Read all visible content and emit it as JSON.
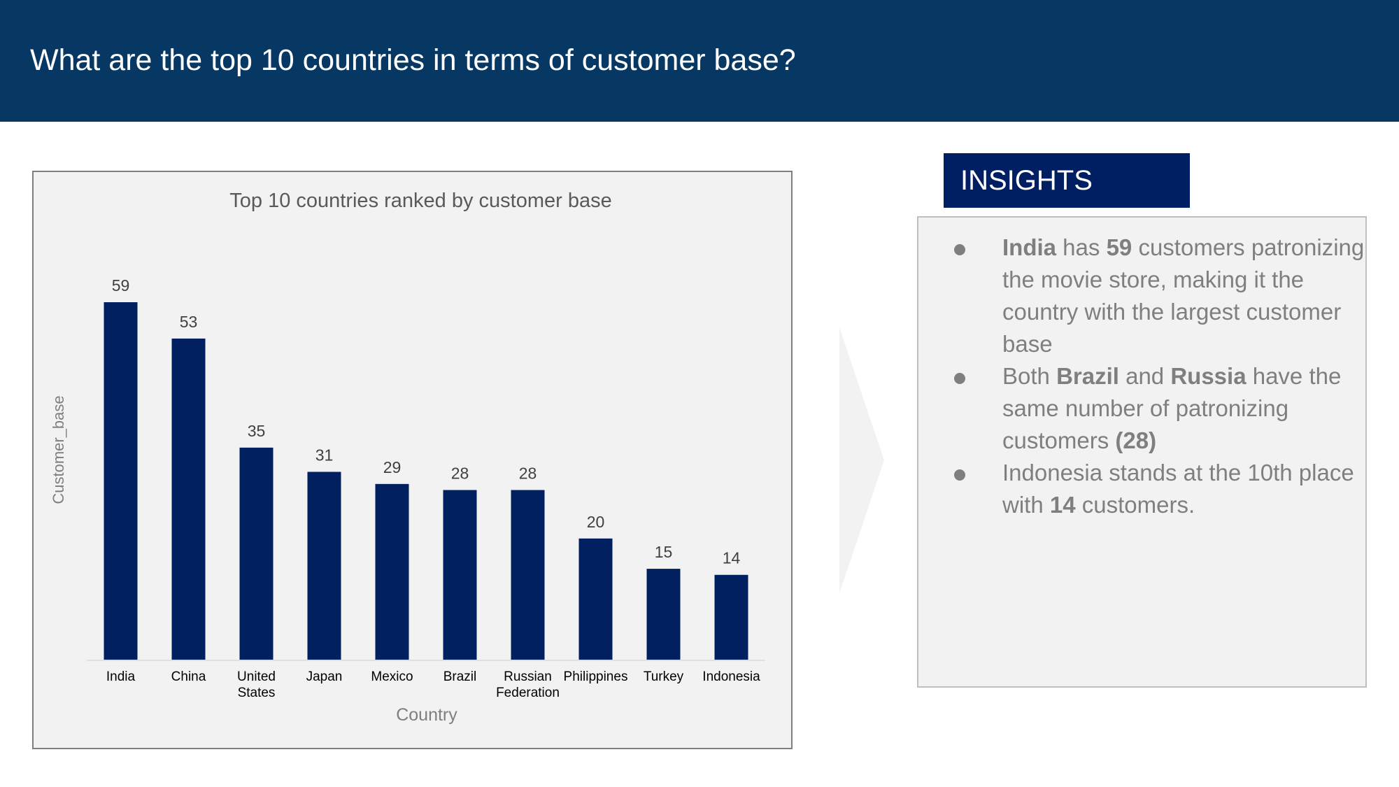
{
  "header": {
    "title": "What are the top 10 countries in terms of customer base?"
  },
  "chart_data": {
    "type": "bar",
    "title": "Top 10 countries ranked by customer base",
    "xlabel": "Country",
    "ylabel": "Customer_base",
    "categories": [
      [
        "India"
      ],
      [
        "China"
      ],
      [
        "United",
        "States"
      ],
      [
        "Japan"
      ],
      [
        "Mexico"
      ],
      [
        "Brazil"
      ],
      [
        "Russian",
        "Federation"
      ],
      [
        "Philippines"
      ],
      [
        "Turkey"
      ],
      [
        "Indonesia"
      ]
    ],
    "values": [
      59,
      53,
      35,
      31,
      29,
      28,
      28,
      20,
      15,
      14
    ],
    "ylim": [
      0,
      59
    ],
    "grid": false,
    "data_labels": true,
    "bar_color": "#002060"
  },
  "insights": {
    "title": "INSIGHTS",
    "items": [
      [
        {
          "t": "India",
          "b": true
        },
        {
          "t": " has "
        },
        {
          "t": "59",
          "b": true
        },
        {
          "t": " customers patronizing the movie store, making it the country with the largest customer base"
        }
      ],
      [
        {
          "t": "Both "
        },
        {
          "t": "Brazil",
          "b": true
        },
        {
          "t": " and "
        },
        {
          "t": "Russia",
          "b": true
        },
        {
          "t": " have the same number of patronizing customers "
        },
        {
          "t": "(28)",
          "b": true
        }
      ],
      [
        {
          "t": "Indonesia stands at the 10th place with "
        },
        {
          "t": "14",
          "b": true
        },
        {
          "t": " customers."
        }
      ]
    ]
  }
}
